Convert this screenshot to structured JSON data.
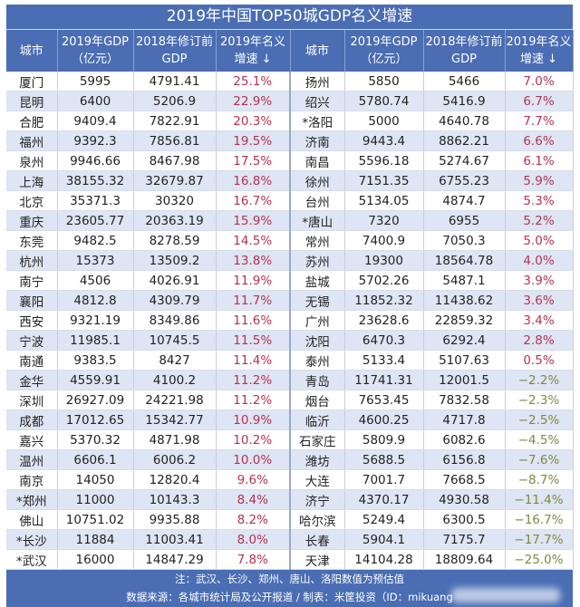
{
  "title": "2019年中国TOP50城GDP名义增速",
  "headers": {
    "city": "城市",
    "gdp2019": "2019年GDP",
    "gdp2019_unit": "（亿元）",
    "gdp2018": "2018年修订前",
    "gdp2018_unit": "GDP",
    "growth": "2019年名义",
    "growth2": "增速 ↓"
  },
  "colors": {
    "header": "#4a6db3",
    "positive": "#b4334e",
    "negative": "#7d8a3c",
    "alt_row": "#dee5f4"
  },
  "left": [
    [
      "厦门",
      "5995",
      "4791.41",
      "25.1%"
    ],
    [
      "昆明",
      "6400",
      "5206.9",
      "22.9%"
    ],
    [
      "合肥",
      "9409.4",
      "7822.91",
      "20.3%"
    ],
    [
      "福州",
      "9392.3",
      "7856.81",
      "19.5%"
    ],
    [
      "泉州",
      "9946.66",
      "8467.98",
      "17.5%"
    ],
    [
      "上海",
      "38155.32",
      "32679.87",
      "16.8%"
    ],
    [
      "北京",
      "35371.3",
      "30320",
      "16.7%"
    ],
    [
      "重庆",
      "23605.77",
      "20363.19",
      "15.9%"
    ],
    [
      "东莞",
      "9482.5",
      "8278.59",
      "14.5%"
    ],
    [
      "杭州",
      "15373",
      "13509.2",
      "13.8%"
    ],
    [
      "南宁",
      "4506",
      "4026.91",
      "11.9%"
    ],
    [
      "襄阳",
      "4812.8",
      "4309.79",
      "11.7%"
    ],
    [
      "西安",
      "9321.19",
      "8349.86",
      "11.6%"
    ],
    [
      "宁波",
      "11985.1",
      "10745.5",
      "11.5%"
    ],
    [
      "南通",
      "9383.5",
      "8427",
      "11.4%"
    ],
    [
      "金华",
      "4559.91",
      "4100.2",
      "11.2%"
    ],
    [
      "深圳",
      "26927.09",
      "24221.98",
      "11.2%"
    ],
    [
      "成都",
      "17012.65",
      "15342.77",
      "10.9%"
    ],
    [
      "嘉兴",
      "5370.32",
      "4871.98",
      "10.2%"
    ],
    [
      "温州",
      "6606.1",
      "6006.2",
      "10.0%"
    ],
    [
      "南京",
      "14050",
      "12820.4",
      "9.6%"
    ],
    [
      "*郑州",
      "11000",
      "10143.3",
      "8.4%"
    ],
    [
      "佛山",
      "10751.02",
      "9935.88",
      "8.2%"
    ],
    [
      "*长沙",
      "11884",
      "11003.41",
      "8.0%"
    ],
    [
      "*武汉",
      "16000",
      "14847.29",
      "7.8%"
    ]
  ],
  "right": [
    [
      "扬州",
      "5850",
      "5466",
      "7.0%"
    ],
    [
      "绍兴",
      "5780.74",
      "5416.9",
      "6.7%"
    ],
    [
      "*洛阳",
      "5000",
      "4640.78",
      "7.7%"
    ],
    [
      "济南",
      "9443.4",
      "8862.21",
      "6.6%"
    ],
    [
      "南昌",
      "5596.18",
      "5274.67",
      "6.1%"
    ],
    [
      "徐州",
      "7151.35",
      "6755.23",
      "5.9%"
    ],
    [
      "台州",
      "5134.05",
      "4874.7",
      "5.3%"
    ],
    [
      "*唐山",
      "7320",
      "6955",
      "5.2%"
    ],
    [
      "常州",
      "7400.9",
      "7050.3",
      "5.0%"
    ],
    [
      "苏州",
      "19300",
      "18564.78",
      "4.0%"
    ],
    [
      "盐城",
      "5702.26",
      "5487.1",
      "3.9%"
    ],
    [
      "无锡",
      "11852.32",
      "11438.62",
      "3.6%"
    ],
    [
      "广州",
      "23628.6",
      "22859.32",
      "3.4%"
    ],
    [
      "沈阳",
      "6470.3",
      "6292.4",
      "2.8%"
    ],
    [
      "泰州",
      "5133.4",
      "5107.63",
      "0.5%"
    ],
    [
      "青岛",
      "11741.31",
      "12001.5",
      "−2.2%"
    ],
    [
      "烟台",
      "7653.45",
      "7832.58",
      "−2.3%"
    ],
    [
      "临沂",
      "4600.25",
      "4717.8",
      "−2.5%"
    ],
    [
      "石家庄",
      "5809.9",
      "6082.6",
      "−4.5%"
    ],
    [
      "潍坊",
      "5688.5",
      "6156.8",
      "−7.6%"
    ],
    [
      "大连",
      "7001.7",
      "7668.5",
      "−8.7%"
    ],
    [
      "济宁",
      "4370.17",
      "4930.58",
      "−11.4%"
    ],
    [
      "哈尔滨",
      "5249.4",
      "6300.5",
      "−16.7%"
    ],
    [
      "长春",
      "5904.1",
      "7175.7",
      "−17.7%"
    ],
    [
      "天津",
      "14104.28",
      "18809.64",
      "−25.0%"
    ]
  ],
  "footer": {
    "note": "注：武汉、长沙、郑州、唐山、洛阳数值为预估值",
    "source": "数据来源：各城市统计局及公开报道 / 制表：米筐投资（ID：mikuang"
  }
}
